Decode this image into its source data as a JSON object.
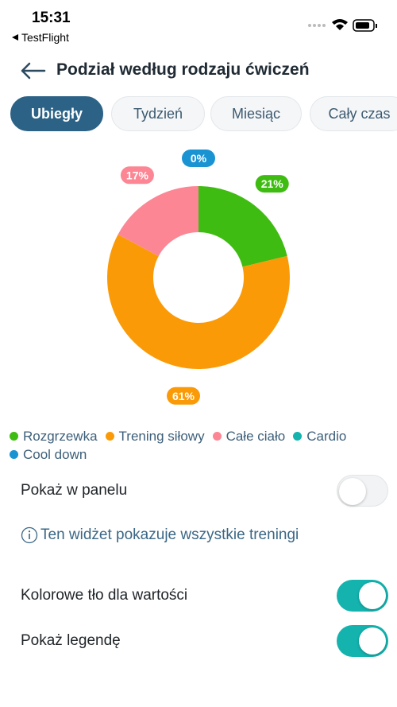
{
  "status_bar": {
    "time": "15:31",
    "back_app": "TestFlight"
  },
  "header": {
    "title": "Podział według rodzaju ćwiczeń"
  },
  "tabs": {
    "items": [
      "Ubiegły",
      "Tydzień",
      "Miesiąc",
      "Cały czas"
    ],
    "selected": 0
  },
  "chart_data": {
    "type": "pie",
    "categories": [
      "Rozgrzewka",
      "Trening siłowy",
      "Całe ciało",
      "Cardio",
      "Cool down"
    ],
    "values": [
      21,
      61,
      17,
      0,
      0
    ],
    "value_labels": [
      "21%",
      "61%",
      "17%",
      null,
      "0%"
    ],
    "colors": [
      "#3fbc12",
      "#fb9a07",
      "#fc8694",
      "#15b3ad",
      "#1a93d3"
    ]
  },
  "settings": {
    "panel": {
      "label": "Pokaż w panelu",
      "on": false
    },
    "info": "Ten widżet pokazuje wszystkie treningi",
    "colored_background": {
      "label": "Kolorowe tło dla wartości",
      "on": true
    },
    "show_legend": {
      "label": "Pokaż legendę",
      "on": true
    }
  }
}
